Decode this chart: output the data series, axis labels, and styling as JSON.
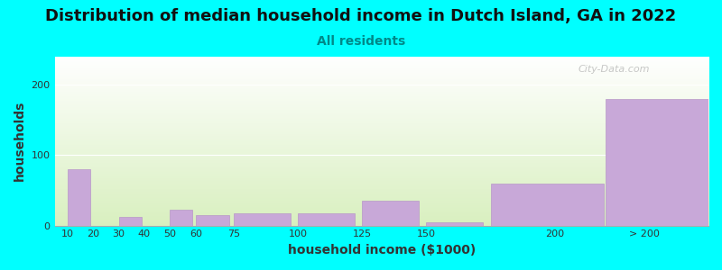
{
  "title": "Distribution of median household income in Dutch Island, GA in 2022",
  "subtitle": "All residents",
  "xlabel": "household income ($1000)",
  "ylabel": "households",
  "background_color": "#00ffff",
  "plot_bg_top": "#ffffff",
  "plot_bg_bottom": "#d8f0c0",
  "bar_color": "#c8a8d8",
  "bar_edgecolor": "#b898c8",
  "values": [
    80,
    0,
    12,
    0,
    22,
    15,
    17,
    18,
    35,
    5,
    60,
    180
  ],
  "bar_positions": [
    10,
    20,
    30,
    40,
    50,
    60,
    75,
    100,
    125,
    150,
    175,
    220
  ],
  "actual_widths": [
    10,
    10,
    10,
    10,
    10,
    15,
    25,
    25,
    25,
    25,
    50,
    50
  ],
  "xlim": [
    5,
    260
  ],
  "ylim": [
    0,
    240
  ],
  "yticks": [
    0,
    100,
    200
  ],
  "xtick_positions": [
    10,
    20,
    30,
    40,
    50,
    60,
    75,
    100,
    125,
    150,
    200,
    235
  ],
  "xtick_labels": [
    "10",
    "20",
    "30",
    "40",
    "50",
    "60",
    "75",
    "100",
    "125",
    "150",
    "200",
    "> 200"
  ],
  "title_fontsize": 13,
  "subtitle_fontsize": 10,
  "axis_label_fontsize": 10,
  "tick_fontsize": 8,
  "watermark": "City-Data.com"
}
